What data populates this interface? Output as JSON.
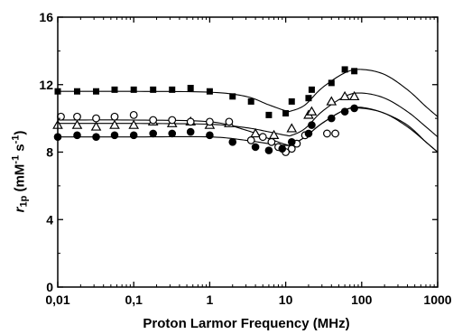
{
  "chart_data": {
    "type": "scatter",
    "title": "",
    "xlabel": "Proton Larmor Frequency (MHz)",
    "ylabel": {
      "symbol": "r",
      "subscript": "1p",
      "unit_open": " (mM",
      "exp1": "-1",
      "unit_mid": " s",
      "exp2": "-1",
      "unit_close": ")"
    },
    "xscale": "log",
    "xlim": [
      0.01,
      1000
    ],
    "ylim": [
      0,
      16
    ],
    "xticks": [
      0.01,
      0.1,
      1,
      10,
      100,
      1000
    ],
    "xtick_labels": [
      "0,01",
      "0,1",
      "1",
      "10",
      "100",
      "1000"
    ],
    "yticks": [
      0,
      4,
      8,
      12,
      16
    ],
    "ytick_labels": [
      "0",
      "4",
      "8",
      "12",
      "16"
    ],
    "grid": false,
    "legend": "none",
    "series": [
      {
        "marker": "filled-square",
        "x": [
          0.01,
          0.018,
          0.032,
          0.056,
          0.1,
          0.18,
          0.32,
          0.56,
          1,
          2,
          3.5,
          6,
          10,
          12,
          20,
          22,
          40,
          60,
          80
        ],
        "y": [
          11.6,
          11.6,
          11.6,
          11.7,
          11.7,
          11.7,
          11.7,
          11.8,
          11.6,
          11.3,
          11.0,
          10.2,
          10.3,
          11.0,
          11.2,
          11.7,
          12.1,
          12.9,
          12.8
        ],
        "fit": [
          [
            0.01,
            11.6
          ],
          [
            0.1,
            11.6
          ],
          [
            1,
            11.55
          ],
          [
            3,
            11.3
          ],
          [
            6,
            10.8
          ],
          [
            10,
            10.45
          ],
          [
            12,
            10.45
          ],
          [
            18,
            10.8
          ],
          [
            30,
            11.8
          ],
          [
            60,
            12.7
          ],
          [
            100,
            12.9
          ],
          [
            200,
            12.6
          ],
          [
            400,
            11.7
          ],
          [
            700,
            10.7
          ],
          [
            1000,
            10.1
          ]
        ]
      },
      {
        "marker": "open-triangle",
        "x": [
          0.01,
          0.018,
          0.032,
          0.056,
          0.1,
          0.18,
          0.32,
          0.56,
          1,
          1.8,
          4,
          7,
          12,
          20,
          22,
          40,
          60,
          80
        ],
        "y": [
          9.6,
          9.6,
          9.5,
          9.6,
          9.6,
          9.8,
          9.7,
          9.8,
          9.6,
          9.7,
          9.1,
          9.0,
          9.4,
          10.2,
          10.4,
          11.0,
          11.3,
          11.3
        ],
        "fit": [
          [
            0.01,
            9.7
          ],
          [
            0.1,
            9.7
          ],
          [
            1,
            9.65
          ],
          [
            3,
            9.45
          ],
          [
            6,
            9.2
          ],
          [
            10,
            9.0
          ],
          [
            12,
            9.0
          ],
          [
            18,
            9.4
          ],
          [
            30,
            10.4
          ],
          [
            60,
            11.3
          ],
          [
            100,
            11.5
          ],
          [
            200,
            11.2
          ],
          [
            400,
            10.4
          ],
          [
            700,
            9.5
          ],
          [
            1000,
            8.9
          ]
        ]
      },
      {
        "marker": "open-circle",
        "x": [
          0.011,
          0.018,
          0.032,
          0.056,
          0.1,
          0.18,
          0.32,
          0.56,
          1,
          1.8,
          3.5,
          5,
          6.5,
          8,
          10,
          12,
          14,
          18,
          35,
          45
        ],
        "y": [
          10.1,
          10.1,
          10.0,
          10.1,
          10.2,
          9.9,
          9.9,
          9.8,
          9.8,
          9.8,
          8.7,
          8.9,
          8.6,
          8.3,
          8.0,
          8.2,
          8.5,
          9.0,
          9.1,
          9.1
        ],
        "fit": [
          [
            0.01,
            9.9
          ],
          [
            0.1,
            9.9
          ],
          [
            1,
            9.8
          ],
          [
            3,
            9.3
          ],
          [
            6,
            8.8
          ],
          [
            10,
            8.45
          ],
          [
            12,
            8.45
          ],
          [
            18,
            8.9
          ],
          [
            30,
            9.7
          ],
          [
            60,
            10.5
          ],
          [
            100,
            10.65
          ],
          [
            200,
            10.3
          ],
          [
            400,
            9.6
          ],
          [
            700,
            8.6
          ],
          [
            1000,
            8.0
          ]
        ]
      },
      {
        "marker": "filled-circle",
        "x": [
          0.01,
          0.018,
          0.032,
          0.056,
          0.1,
          0.18,
          0.32,
          0.56,
          1,
          2,
          4,
          6,
          9,
          12,
          20,
          22,
          40,
          60,
          80
        ],
        "y": [
          8.9,
          9.0,
          8.9,
          9.0,
          9.0,
          9.1,
          9.1,
          9.2,
          9.0,
          8.6,
          8.3,
          8.1,
          8.2,
          8.6,
          9.1,
          9.6,
          10.0,
          10.4,
          10.6
        ],
        "fit": [
          [
            0.01,
            8.9
          ],
          [
            0.1,
            8.9
          ],
          [
            1,
            8.9
          ],
          [
            3,
            8.7
          ],
          [
            6,
            8.5
          ],
          [
            10,
            8.4
          ],
          [
            12,
            8.45
          ],
          [
            18,
            8.9
          ],
          [
            30,
            9.7
          ],
          [
            60,
            10.5
          ],
          [
            100,
            10.6
          ],
          [
            200,
            10.3
          ],
          [
            400,
            9.5
          ],
          [
            700,
            8.6
          ],
          [
            1000,
            8.0
          ]
        ]
      }
    ]
  }
}
